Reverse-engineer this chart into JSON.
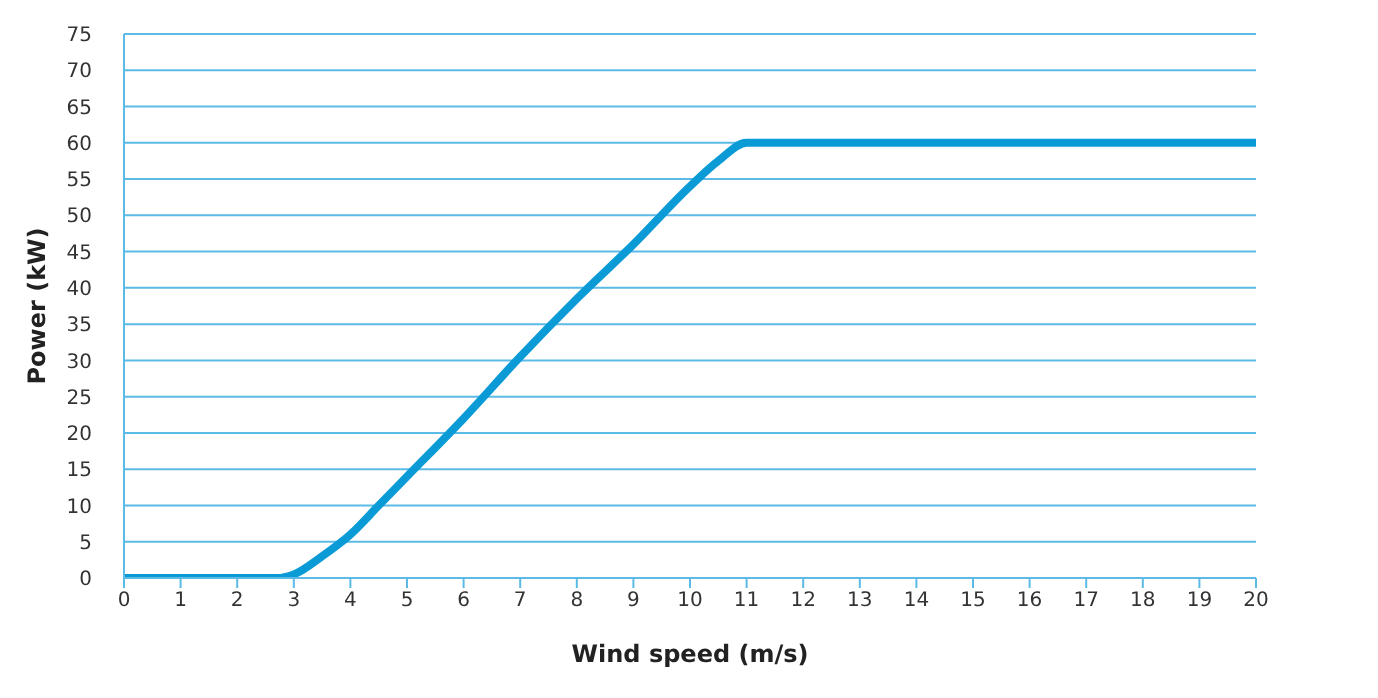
{
  "chart_data": {
    "type": "line",
    "xlabel": "Wind speed (m/s)",
    "ylabel": "Power (kW)",
    "x": [
      0,
      1,
      2,
      2.7,
      3,
      3.5,
      4,
      4.5,
      5,
      6,
      7,
      8,
      9,
      10,
      10.5,
      11,
      12,
      20
    ],
    "series": [
      {
        "color": "#0a9bd7",
        "values": [
          0,
          0,
          0,
          0,
          0.5,
          3,
          6,
          10,
          14,
          22,
          30.5,
          38.5,
          46,
          54,
          57.5,
          60,
          60,
          60
        ]
      }
    ],
    "xlim": [
      0,
      20
    ],
    "xticks": [
      0,
      1,
      2,
      3,
      4,
      5,
      6,
      7,
      8,
      9,
      10,
      11,
      12,
      13,
      14,
      15,
      16,
      17,
      18,
      19,
      20
    ],
    "ylim": [
      0,
      75
    ],
    "yticks": [
      0,
      5,
      10,
      15,
      20,
      25,
      30,
      35,
      40,
      45,
      50,
      55,
      60,
      65,
      70,
      75
    ],
    "grid": "y",
    "marker": "none",
    "line_style": "solid",
    "legend": false
  }
}
